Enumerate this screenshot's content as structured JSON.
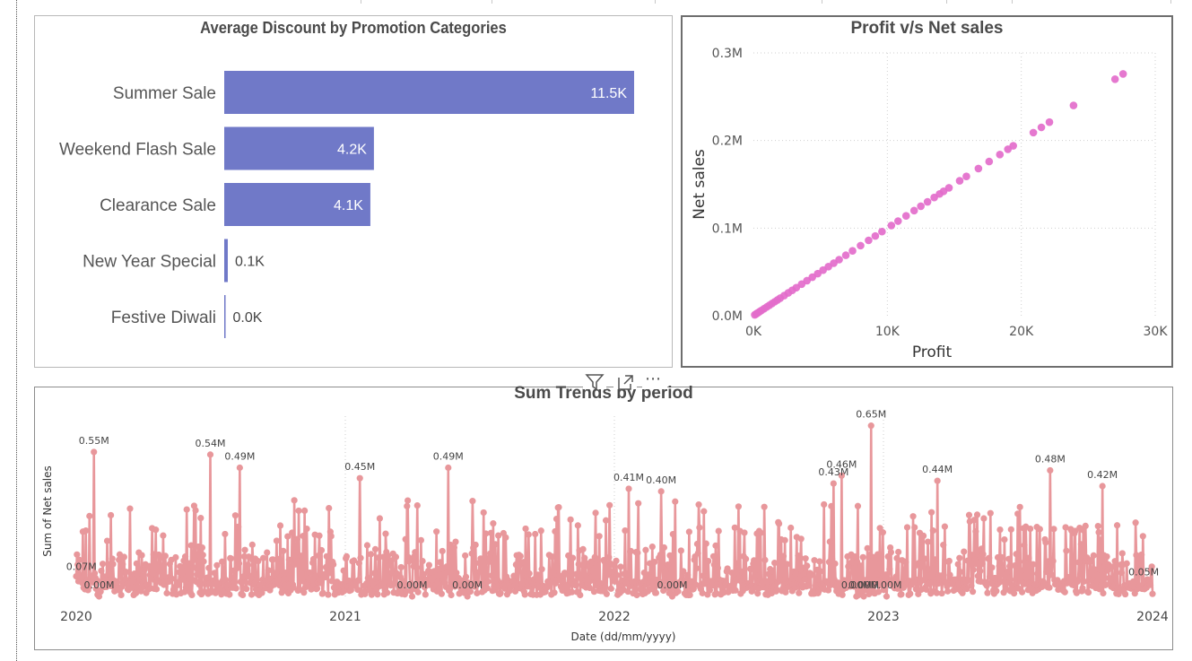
{
  "header_icons": {
    "filter": "filter-icon",
    "focus": "focus-mode-icon",
    "more": "more-options-icon",
    "more_glyph": "⋯"
  },
  "chart_data": [
    {
      "type": "bar",
      "orientation": "horizontal",
      "title": "Average Discount by Promotion Categories",
      "categories": [
        "Summer Sale",
        "Weekend Flash Sale",
        "Clearance Sale",
        "New Year Special",
        "Festive Diwali"
      ],
      "values": [
        11.5,
        4.2,
        4.1,
        0.1,
        0.0
      ],
      "unit": "K",
      "data_labels": [
        "11.5K",
        "4.2K",
        "4.1K",
        "0.1K",
        "0.0K"
      ],
      "color": "#7079c8",
      "xlim": [
        0,
        11.5
      ]
    },
    {
      "type": "scatter",
      "title": "Profit v/s Net sales",
      "xlabel": "Profit",
      "ylabel": "Net sales",
      "xlim": [
        0,
        30000
      ],
      "ylim": [
        0,
        300000
      ],
      "x_ticks": [
        0,
        10000,
        20000,
        30000
      ],
      "x_tick_labels": [
        "0K",
        "10K",
        "20K",
        "30K"
      ],
      "y_ticks": [
        0,
        100000,
        200000,
        300000
      ],
      "y_tick_labels": [
        "0.0M",
        "0.1M",
        "0.2M",
        "0.3M"
      ],
      "grid": true,
      "color": "#e36ccb",
      "points": [
        [
          100,
          1000
        ],
        [
          200,
          2000
        ],
        [
          300,
          3000
        ],
        [
          450,
          4500
        ],
        [
          600,
          6000
        ],
        [
          800,
          8000
        ],
        [
          1000,
          10000
        ],
        [
          1200,
          12000
        ],
        [
          1400,
          14000
        ],
        [
          1600,
          16000
        ],
        [
          1800,
          18000
        ],
        [
          2000,
          20000
        ],
        [
          2300,
          23000
        ],
        [
          2600,
          26000
        ],
        [
          2900,
          29000
        ],
        [
          3200,
          32000
        ],
        [
          3600,
          36000
        ],
        [
          4000,
          40000
        ],
        [
          4400,
          44000
        ],
        [
          4800,
          48000
        ],
        [
          5200,
          52000
        ],
        [
          5600,
          56000
        ],
        [
          6000,
          60000
        ],
        [
          6400,
          64000
        ],
        [
          6900,
          69000
        ],
        [
          7400,
          74000
        ],
        [
          8000,
          80000
        ],
        [
          8600,
          86000
        ],
        [
          9100,
          91000
        ],
        [
          9600,
          96000
        ],
        [
          10300,
          103000
        ],
        [
          10800,
          108000
        ],
        [
          11400,
          114000
        ],
        [
          12000,
          120000
        ],
        [
          12500,
          125000
        ],
        [
          13000,
          130000
        ],
        [
          13500,
          135000
        ],
        [
          13900,
          139000
        ],
        [
          14200,
          142000
        ],
        [
          14600,
          146000
        ],
        [
          15400,
          154000
        ],
        [
          15900,
          159000
        ],
        [
          16800,
          168000
        ],
        [
          17600,
          176000
        ],
        [
          18400,
          184000
        ],
        [
          19000,
          190000
        ],
        [
          19400,
          194000
        ],
        [
          20900,
          209000
        ],
        [
          21500,
          215000
        ],
        [
          22100,
          221000
        ],
        [
          23900,
          240000
        ],
        [
          27000,
          270000
        ],
        [
          27600,
          276000
        ]
      ]
    },
    {
      "type": "line",
      "title": "Sum Trends by period",
      "xlabel": "Date (dd/mm/yyyy)",
      "ylabel": "Sum of Net sales",
      "x_tick_labels": [
        "2020",
        "2021",
        "2022",
        "2023",
        "2024"
      ],
      "xlim": [
        "2020-01-01",
        "2024-01-01"
      ],
      "ylim": [
        0,
        0.7
      ],
      "unit": "M",
      "color": "#e8979b",
      "grid": "vertical dotted",
      "peaks": [
        {
          "date": "2020-01-25",
          "value": 0.55
        },
        {
          "date": "2020-07-01",
          "value": 0.54
        },
        {
          "date": "2020-08-10",
          "value": 0.49
        },
        {
          "date": "2021-01-20",
          "value": 0.45
        },
        {
          "date": "2021-05-20",
          "value": 0.49
        },
        {
          "date": "2022-01-20",
          "value": 0.41
        },
        {
          "date": "2022-03-05",
          "value": 0.4
        },
        {
          "date": "2022-10-25",
          "value": 0.43
        },
        {
          "date": "2022-11-05",
          "value": 0.46
        },
        {
          "date": "2022-12-15",
          "value": 0.65
        },
        {
          "date": "2023-03-15",
          "value": 0.44
        },
        {
          "date": "2023-08-15",
          "value": 0.48
        },
        {
          "date": "2023-10-25",
          "value": 0.42
        }
      ],
      "annotations": [
        {
          "date": "2020-01-08",
          "value": 0.07,
          "label": "0.07M"
        },
        {
          "date": "2020-02-01",
          "value": 0.0,
          "label": "0.00M"
        },
        {
          "date": "2020-01-25",
          "value": 0.55,
          "label": "0.55M"
        },
        {
          "date": "2020-07-01",
          "value": 0.54,
          "label": "0.54M"
        },
        {
          "date": "2020-08-10",
          "value": 0.49,
          "label": "0.49M"
        },
        {
          "date": "2021-01-20",
          "value": 0.45,
          "label": "0.45M"
        },
        {
          "date": "2021-04-01",
          "value": 0.0,
          "label": "0.00M"
        },
        {
          "date": "2021-05-20",
          "value": 0.49,
          "label": "0.49M"
        },
        {
          "date": "2021-06-15",
          "value": 0.0,
          "label": "0.00M"
        },
        {
          "date": "2022-01-20",
          "value": 0.41,
          "label": "0.41M"
        },
        {
          "date": "2022-03-05",
          "value": 0.4,
          "label": "0.40M"
        },
        {
          "date": "2022-03-20",
          "value": 0.0,
          "label": "0.00M"
        },
        {
          "date": "2022-10-25",
          "value": 0.43,
          "label": "0.43M"
        },
        {
          "date": "2022-11-05",
          "value": 0.46,
          "label": "0.46M"
        },
        {
          "date": "2022-11-25",
          "value": 0.0,
          "label": "0.00M"
        },
        {
          "date": "2022-12-15",
          "value": 0.65,
          "label": "0.65M"
        },
        {
          "date": "2022-12-05",
          "value": 0.0,
          "label": "0.00M"
        },
        {
          "date": "2023-01-05",
          "value": 0.0,
          "label": "0.00M"
        },
        {
          "date": "2023-03-15",
          "value": 0.44,
          "label": "0.44M"
        },
        {
          "date": "2023-08-15",
          "value": 0.48,
          "label": "0.48M"
        },
        {
          "date": "2023-10-25",
          "value": 0.42,
          "label": "0.42M"
        },
        {
          "date": "2023-12-20",
          "value": 0.05,
          "label": "0.05M"
        }
      ]
    }
  ]
}
